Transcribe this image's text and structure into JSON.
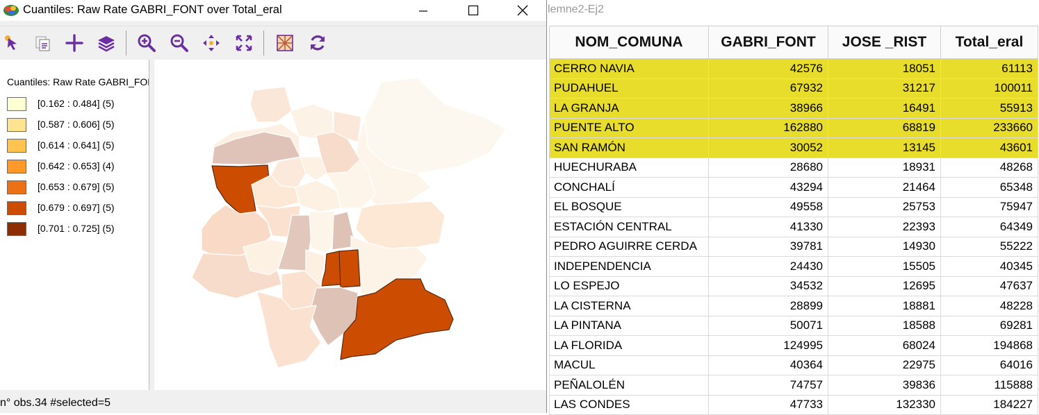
{
  "map_window": {
    "title": "Cuantiles: Raw Rate GABRI_FONT over Total_eral",
    "controls": {
      "minimize": "minimize",
      "maximize": "maximize",
      "close": "close"
    },
    "toolbar": [
      {
        "name": "select-pointer-icon"
      },
      {
        "name": "copy-selection-icon"
      },
      {
        "name": "add-plus-icon"
      },
      {
        "name": "layers-icon"
      },
      {
        "name": "zoom-in-icon"
      },
      {
        "name": "zoom-out-icon"
      },
      {
        "name": "pan-icon"
      },
      {
        "name": "full-extent-icon"
      },
      {
        "name": "map-theme-icon"
      },
      {
        "name": "refresh-icon"
      }
    ],
    "legend": {
      "title": "Cuantiles: Raw Rate GABRI_FONT over Total_eral",
      "items": [
        {
          "label": "[0.162 : 0.484] (5)",
          "color": "#ffffd4"
        },
        {
          "label": "[0.587 : 0.606] (5)",
          "color": "#fee391"
        },
        {
          "label": "[0.614 : 0.641] (5)",
          "color": "#fec44f"
        },
        {
          "label": "[0.642 : 0.653] (4)",
          "color": "#fe9929"
        },
        {
          "label": "[0.653 : 0.679] (5)",
          "color": "#ec7014"
        },
        {
          "label": "[0.679 : 0.697] (5)",
          "color": "#cc4c02"
        },
        {
          "label": "[0.701 : 0.725] (5)",
          "color": "#8c2d04"
        }
      ]
    },
    "status": "n° obs.34 #selected=5"
  },
  "table_window": {
    "title_fragment": "lemne2-Ej2",
    "columns": [
      "NOM_COMUNA",
      "GABRI_FONT",
      "JOSE _RIST",
      "Total_eral"
    ],
    "rows": [
      {
        "name": "CERRO NAVIA",
        "gabri": "42576",
        "jose": "18051",
        "total": "61113",
        "selected": true
      },
      {
        "name": "PUDAHUEL",
        "gabri": "67932",
        "jose": "31217",
        "total": "100011",
        "selected": true
      },
      {
        "name": "LA GRANJA",
        "gabri": "38966",
        "jose": "16491",
        "total": "55913",
        "selected": true
      },
      {
        "name": "PUENTE ALTO",
        "gabri": "162880",
        "jose": "68819",
        "total": "233660",
        "selected": true
      },
      {
        "name": "SAN RAMÓN",
        "gabri": "30052",
        "jose": "13145",
        "total": "43601",
        "selected": true
      },
      {
        "name": "HUECHURABA",
        "gabri": "28680",
        "jose": "18931",
        "total": "48268",
        "selected": false
      },
      {
        "name": "CONCHALÍ",
        "gabri": "43294",
        "jose": "21464",
        "total": "65348",
        "selected": false
      },
      {
        "name": "EL BOSQUE",
        "gabri": "49558",
        "jose": "25753",
        "total": "75947",
        "selected": false
      },
      {
        "name": "ESTACIÓN CENTRAL",
        "gabri": "41330",
        "jose": "22393",
        "total": "64349",
        "selected": false
      },
      {
        "name": "PEDRO AGUIRRE CERDA",
        "gabri": "39781",
        "jose": "14930",
        "total": "55222",
        "selected": false
      },
      {
        "name": "INDEPENDENCIA",
        "gabri": "24430",
        "jose": "15505",
        "total": "40345",
        "selected": false
      },
      {
        "name": "LO ESPEJO",
        "gabri": "34532",
        "jose": "12695",
        "total": "47637",
        "selected": false
      },
      {
        "name": "LA CISTERNA",
        "gabri": "28899",
        "jose": "18881",
        "total": "48228",
        "selected": false
      },
      {
        "name": "LA PINTANA",
        "gabri": "50071",
        "jose": "18588",
        "total": "69281",
        "selected": false
      },
      {
        "name": "LA FLORIDA",
        "gabri": "124995",
        "jose": "68024",
        "total": "194868",
        "selected": false
      },
      {
        "name": "MACUL",
        "gabri": "40364",
        "jose": "22975",
        "total": "64016",
        "selected": false
      },
      {
        "name": "PEÑALOLÉN",
        "gabri": "74757",
        "jose": "39836",
        "total": "115888",
        "selected": false
      },
      {
        "name": "LAS CONDES",
        "gabri": "47733",
        "jose": "132330",
        "total": "184227",
        "selected": false
      }
    ]
  },
  "colors": {
    "selection_highlight": "#e8dd2a",
    "map_selected_fill": "#cc4c02",
    "map_unselected_tint": "faded",
    "toolbar_icon_purple": "#6b2fa0"
  }
}
